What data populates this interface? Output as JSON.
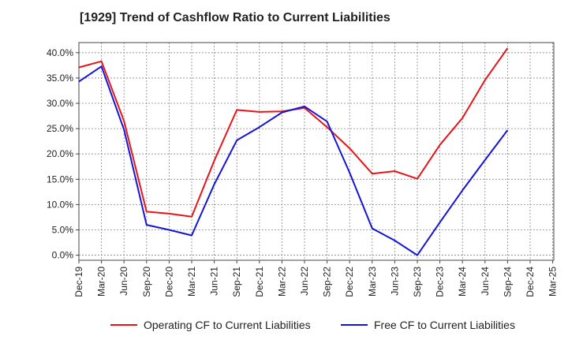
{
  "title": "[1929]  Trend of Cashflow Ratio to Current Liabilities",
  "chart_data": {
    "type": "line",
    "title": "[1929]  Trend of Cashflow Ratio to Current Liabilities",
    "xlabel": "",
    "ylabel": "",
    "categories": [
      "Dec-19",
      "Mar-20",
      "Jun-20",
      "Sep-20",
      "Dec-20",
      "Mar-21",
      "Jun-21",
      "Sep-21",
      "Dec-21",
      "Mar-22",
      "Jun-22",
      "Sep-22",
      "Dec-22",
      "Mar-23",
      "Jun-23",
      "Sep-23",
      "Dec-23",
      "Mar-24",
      "Jun-24",
      "Sep-24",
      "Dec-24",
      "Mar-25"
    ],
    "ylim": [
      -1.0,
      42.0
    ],
    "yticks": [
      0,
      5,
      10,
      15,
      20,
      25,
      30,
      35,
      40
    ],
    "ytick_labels": [
      "0.0%",
      "5.0%",
      "10.0%",
      "15.0%",
      "20.0%",
      "25.0%",
      "30.0%",
      "35.0%",
      "40.0%"
    ],
    "grid": true,
    "legend_position": "bottom",
    "series": [
      {
        "name": "Operating CF to Current Liabilities",
        "color": "#e8141a",
        "values": [
          37.1,
          38.3,
          26.5,
          8.6,
          8.2,
          7.6,
          18.7,
          28.7,
          28.3,
          28.4,
          29.1,
          25.3,
          21.1,
          16.1,
          16.6,
          15.1,
          21.8,
          27.1,
          34.6,
          40.9,
          null,
          null
        ]
      },
      {
        "name": "Free CF to Current Liabilities",
        "color": "#1414d8",
        "values": [
          34.3,
          37.3,
          24.8,
          6.0,
          5.0,
          3.9,
          14.0,
          22.7,
          25.3,
          28.2,
          29.4,
          26.4,
          16.3,
          5.3,
          2.9,
          0.0,
          6.5,
          12.8,
          18.8,
          24.7,
          null,
          null
        ]
      }
    ]
  },
  "legend": [
    {
      "label": "Operating CF to Current Liabilities",
      "color": "#e8141a"
    },
    {
      "label": "Free CF to Current Liabilities",
      "color": "#1414d8"
    }
  ]
}
